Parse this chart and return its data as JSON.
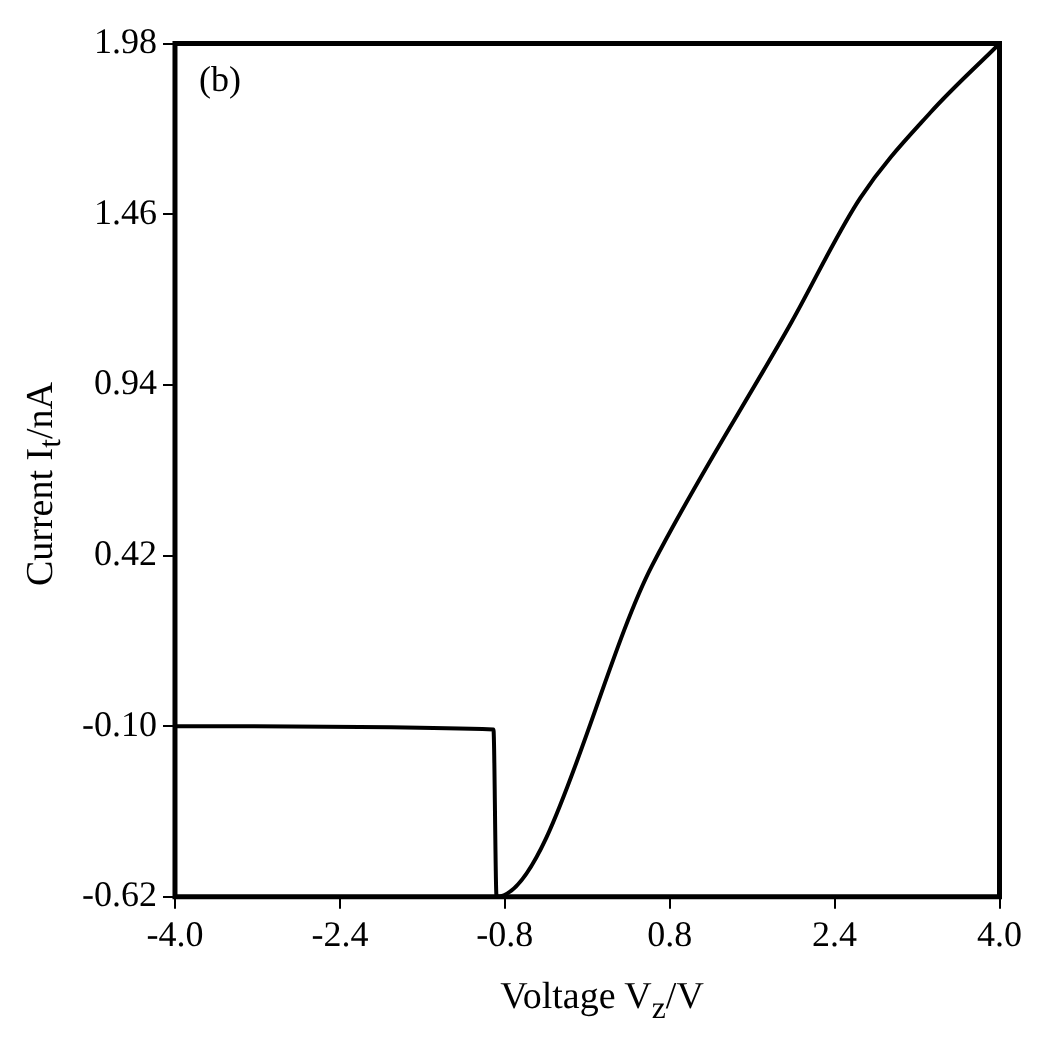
{
  "chart_data": {
    "type": "line",
    "xlabel": "Voltage V$_{z}$/V",
    "ylabel": "Current I$_{t}$/nA",
    "x": [
      -4.0,
      -0.91,
      -0.88,
      0.63,
      1.98,
      2.65,
      3.33,
      4.0
    ],
    "series": [
      {
        "color": "#000000",
        "values": [
          -0.1,
          -0.11,
          -0.62,
          0.39,
          1.13,
          1.51,
          1.77,
          1.98
        ]
      }
    ],
    "xlim": [
      -4.0,
      4.0
    ],
    "xticks": [
      {
        "value": -4.0,
        "label": "-4.0"
      },
      {
        "value": -2.4,
        "label": "-2.4"
      },
      {
        "value": -0.8,
        "label": "-0.8"
      },
      {
        "value": 0.8,
        "label": "0.8"
      },
      {
        "value": 2.4,
        "label": "2.4"
      },
      {
        "value": 4.0,
        "label": "4.0"
      }
    ],
    "ylim": [
      -0.62,
      1.98
    ],
    "yticks": [
      {
        "value": -0.62,
        "label": "-0.62"
      },
      {
        "value": -0.1,
        "label": "-0.10"
      },
      {
        "value": 0.42,
        "label": "0.42"
      },
      {
        "value": 0.94,
        "label": "0.94"
      },
      {
        "value": 1.46,
        "label": "1.46"
      },
      {
        "value": 1.98,
        "label": "1.98"
      }
    ],
    "annotations": [
      "(b)"
    ],
    "grid": false,
    "legend": false,
    "marker": "none",
    "line_style": "solid"
  }
}
